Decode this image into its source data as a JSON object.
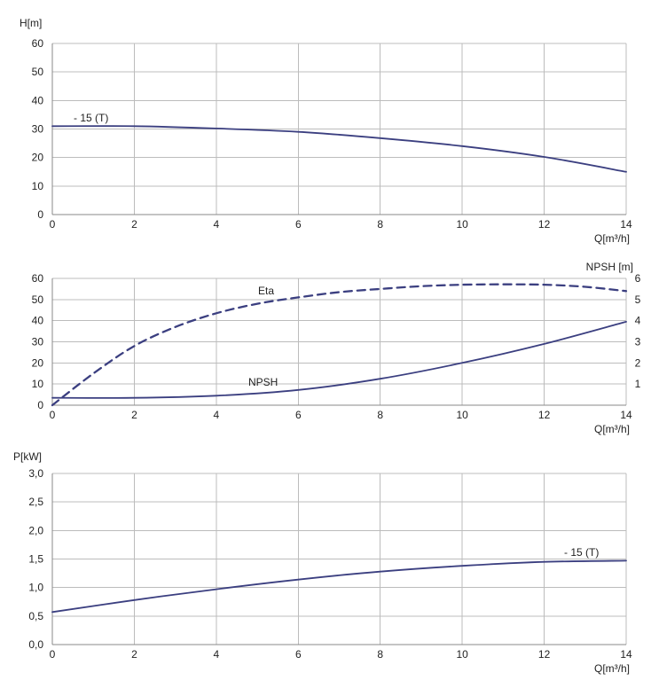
{
  "chart_data": [
    {
      "type": "line",
      "ylabel": "H[m]",
      "xlabel": "Q[m³/h]",
      "xlim": [
        0,
        14
      ],
      "ylim": [
        0,
        60
      ],
      "xticks": [
        "0",
        "2",
        "4",
        "6",
        "8",
        "10",
        "12",
        "14"
      ],
      "yticks": [
        "0",
        "10",
        "20",
        "30",
        "40",
        "50",
        "60"
      ],
      "grid": true,
      "series": [
        {
          "name": "- 15 (T)",
          "x": [
            0,
            2,
            4,
            6,
            8,
            10,
            12,
            14
          ],
          "y": [
            31,
            31,
            30.2,
            29,
            26.8,
            24,
            20.2,
            15
          ]
        }
      ]
    },
    {
      "type": "line",
      "xlabel": "Q[m³/h]",
      "y2label": "NPSH [m]",
      "xlim": [
        0,
        14
      ],
      "ylim": [
        0,
        60
      ],
      "y2lim": [
        0,
        6
      ],
      "xticks": [
        "0",
        "2",
        "4",
        "6",
        "8",
        "10",
        "12",
        "14"
      ],
      "yticks": [
        "0",
        "10",
        "20",
        "30",
        "40",
        "50",
        "60"
      ],
      "y2ticks": [
        "1",
        "2",
        "3",
        "4",
        "5",
        "6"
      ],
      "grid": true,
      "series": [
        {
          "name": "Eta",
          "axis": "left",
          "style": "dashed",
          "x": [
            0,
            1,
            2,
            3,
            4,
            5,
            6,
            7,
            8,
            9,
            10,
            11,
            12,
            13,
            14
          ],
          "y": [
            0,
            15,
            28,
            37,
            43.5,
            48,
            51,
            53.5,
            55,
            56.3,
            57,
            57.2,
            57,
            56,
            54
          ]
        },
        {
          "name": "NPSH",
          "axis": "right",
          "x": [
            0,
            2,
            4,
            6,
            8,
            10,
            12,
            14
          ],
          "y": [
            0.35,
            0.35,
            0.45,
            0.72,
            1.25,
            2.0,
            2.9,
            3.95
          ]
        }
      ]
    },
    {
      "type": "line",
      "ylabel": "P[kW]",
      "xlabel": "Q[m³/h]",
      "xlim": [
        0,
        14
      ],
      "ylim": [
        0,
        3
      ],
      "xticks": [
        "0",
        "2",
        "4",
        "6",
        "8",
        "10",
        "12",
        "14"
      ],
      "yticks": [
        "0,0",
        "0,5",
        "1,0",
        "1,5",
        "2,0",
        "2,5",
        "3,0"
      ],
      "grid": true,
      "series": [
        {
          "name": "- 15 (T)",
          "x": [
            0,
            2,
            4,
            6,
            8,
            10,
            12,
            14
          ],
          "y": [
            0.57,
            0.78,
            0.97,
            1.14,
            1.28,
            1.38,
            1.45,
            1.47
          ]
        }
      ]
    }
  ],
  "colors": {
    "curve": "#3b3f80",
    "grid": "#bcbcbc"
  }
}
